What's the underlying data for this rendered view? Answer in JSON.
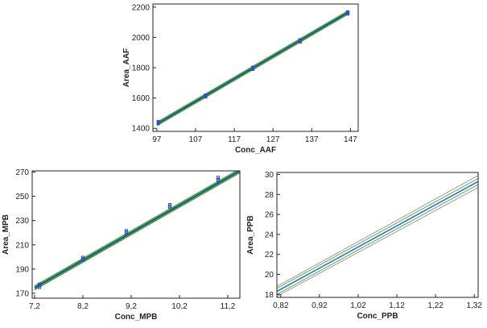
{
  "chart_data": [
    {
      "id": "aaf",
      "type": "line",
      "xlabel": "Conc_AAF",
      "ylabel": "Area_AAF",
      "xlim": [
        96,
        149
      ],
      "ylim": [
        1380,
        2220
      ],
      "xticks": [
        97,
        107,
        117,
        127,
        137,
        147
      ],
      "xtick_labels": [
        "97",
        "107",
        "117",
        "127",
        "137",
        "147"
      ],
      "yticks": [
        1400,
        1600,
        1800,
        2000,
        2200
      ],
      "ytick_labels": [
        "1400",
        "1600",
        "1800",
        "2000",
        "2200"
      ],
      "grid": false,
      "fit_line": {
        "x": [
          97,
          146.5
        ],
        "y": [
          1428,
          2166
        ]
      },
      "confidence_band": {
        "x": [
          97,
          146.5
        ],
        "lower": [
          1420,
          2158
        ],
        "upper": [
          1436,
          2174
        ]
      },
      "prediction_band": {
        "x": [
          97,
          146.5
        ],
        "lower": [
          1416,
          2154
        ],
        "upper": [
          1440,
          2178
        ]
      },
      "points": {
        "x": [
          97.4,
          97.4,
          97.4,
          109.6,
          109.6,
          109.6,
          121.8,
          121.8,
          121.8,
          134.0,
          134.0,
          134.0,
          146.3,
          146.3,
          146.3
        ],
        "y": [
          1433,
          1439,
          1444,
          1608,
          1614,
          1619,
          1790,
          1797,
          1802,
          1971,
          1977,
          1983,
          2155,
          2161,
          2167
        ]
      },
      "colors": {
        "points": "#2f52b8",
        "fit_line": "#1f3f8f",
        "bands": "#3f9f3f",
        "frame": "#222222"
      }
    },
    {
      "id": "mpb",
      "type": "line",
      "xlabel": "Conc_MPB",
      "ylabel": "Area_MPB",
      "xlim": [
        7.15,
        11.45
      ],
      "ylim": [
        166,
        271
      ],
      "xticks": [
        7.2,
        8.2,
        9.2,
        10.2,
        11.2
      ],
      "xtick_labels": [
        "7,2",
        "8,2",
        "9,2",
        "10,2",
        "11,2"
      ],
      "yticks": [
        170,
        190,
        210,
        230,
        250,
        270
      ],
      "ytick_labels": [
        "170",
        "190",
        "210",
        "230",
        "250",
        "270"
      ],
      "grid": false,
      "fit_line": {
        "x": [
          7.2,
          11.45
        ],
        "y": [
          174.5,
          271
        ]
      },
      "confidence_band": {
        "x": [
          7.2,
          11.45
        ],
        "lower": [
          173.5,
          270
        ],
        "upper": [
          175.5,
          272
        ]
      },
      "prediction_band": {
        "x": [
          7.2,
          11.45
        ],
        "lower": [
          172.8,
          269.3
        ],
        "upper": [
          176.2,
          272.7
        ]
      },
      "points": {
        "x": [
          7.3,
          7.3,
          7.3,
          8.2,
          8.2,
          8.2,
          9.1,
          9.1,
          9.1,
          10.0,
          10.0,
          10.0,
          11.0,
          11.0,
          11.0
        ],
        "y": [
          175,
          176.5,
          177.5,
          197.5,
          198.5,
          199.5,
          219.5,
          220.5,
          221.5,
          241,
          242,
          243,
          263,
          264,
          265.5
        ]
      },
      "colors": {
        "points": "#2f52b8",
        "fit_line": "#1f3f8f",
        "bands": "#3f9f3f",
        "frame": "#222222"
      }
    },
    {
      "id": "ppb",
      "type": "line",
      "xlabel": "Conc_PPB",
      "ylabel": "Area_PPB",
      "xlim": [
        0.81,
        1.33
      ],
      "ylim": [
        17.7,
        30.2
      ],
      "xticks": [
        0.82,
        0.92,
        1.02,
        1.12,
        1.22,
        1.32
      ],
      "xtick_labels": [
        "0,82",
        "0,92",
        "1,02",
        "1,12",
        "1,22",
        "1,32"
      ],
      "yticks": [
        18,
        20,
        22,
        24,
        26,
        28,
        30
      ],
      "ytick_labels": [
        "18",
        "20",
        "22",
        "24",
        "26",
        "28",
        "30"
      ],
      "grid": false,
      "fit_line": {
        "x": [
          0.81,
          1.33
        ],
        "y": [
          18.3,
          29.3
        ]
      },
      "confidence_band": {
        "x": [
          0.81,
          1.33
        ],
        "lower": [
          18.0,
          29.0
        ],
        "upper": [
          18.6,
          29.6
        ]
      },
      "prediction_band": {
        "x": [
          0.81,
          1.33
        ],
        "lower": [
          17.8,
          28.7
        ],
        "upper": [
          18.8,
          29.9
        ]
      },
      "points": {
        "x": [],
        "y": []
      },
      "colors": {
        "points": "#2f52b8",
        "fit_line": "#3a6fc0",
        "bands": "#9a9a9a",
        "inner_band": "#4caf50",
        "frame": "#222222"
      }
    }
  ]
}
